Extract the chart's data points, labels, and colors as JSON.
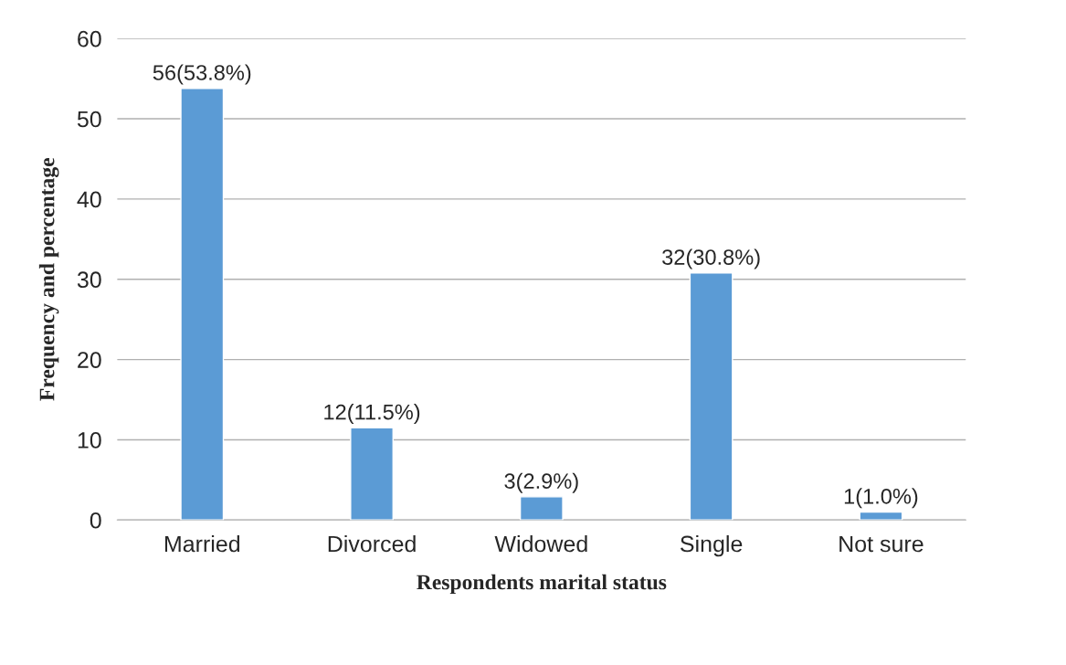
{
  "chart_data": {
    "type": "bar",
    "xlabel": "Respondents marital status",
    "ylabel": "Frequency and percentage",
    "categories": [
      "Married",
      "Divorced",
      "Widowed",
      "Single",
      "Not sure"
    ],
    "values": [
      53.8,
      11.5,
      2.9,
      30.8,
      1.0
    ],
    "value_labels": [
      "56(53.8%)",
      "12(11.5%)",
      "3(2.9%)",
      "32(30.8%)",
      "1(1.0%)"
    ],
    "color": "#5b9bd5",
    "ylim": [
      0,
      60
    ],
    "yticks": [
      0,
      10,
      20,
      30,
      40,
      50,
      60
    ],
    "grid": "y",
    "legend": false
  }
}
